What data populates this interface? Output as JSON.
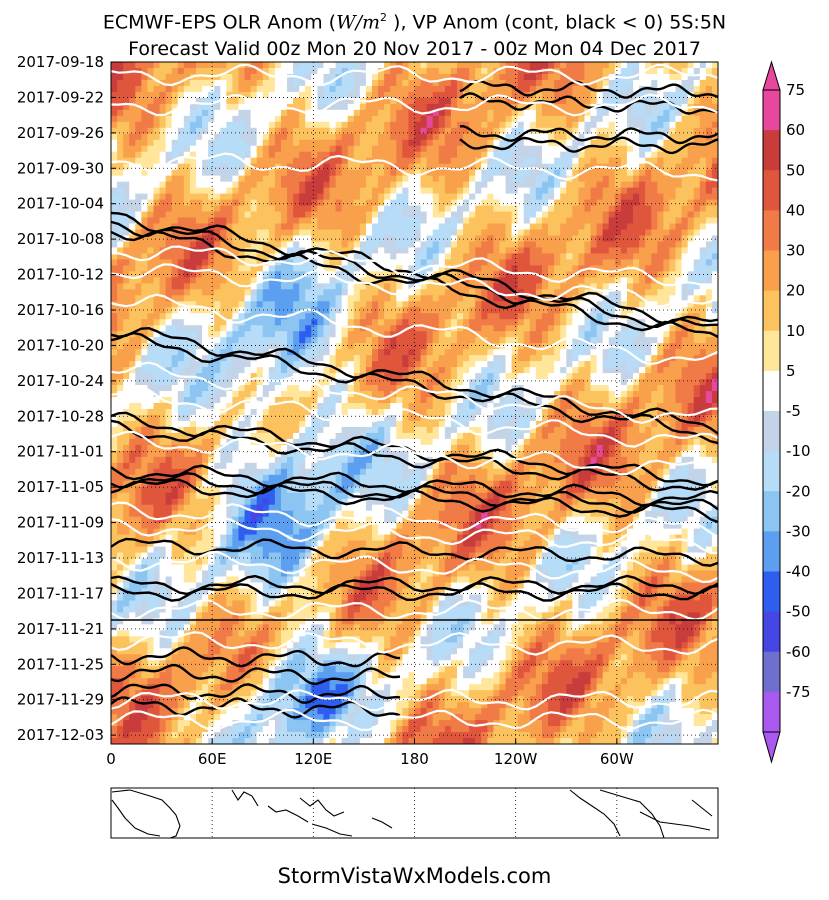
{
  "title_line1": "ECMWF-EPS  OLR Anom (W/m², VP Anom (cont, black < 0) 5S:5N",
  "title_line1_a": "ECMWF-EPS  OLR Anom (",
  "title_line1_b": "W/m",
  "title_line1_c": "2",
  "title_line1_d": " ), VP Anom (cont, black < 0) 5S:5N",
  "title_line2": "Forecast Valid 00z Mon 20 Nov 2017 - 00z Mon 04 Dec 2017",
  "footer": "StormVistaWxModels.com",
  "chart_data": {
    "type": "heatmap",
    "title": "ECMWF-EPS  OLR Anom (W/m2 ), VP Anom (cont, black < 0) 5S:5N",
    "subtitle": "Forecast Valid 00z Mon 20 Nov 2017 - 00z Mon 04 Dec 2017",
    "xlabel": "",
    "ylabel": "",
    "x_ticks": [
      "0",
      "60E",
      "120E",
      "180",
      "120W",
      "60W"
    ],
    "x_tick_longitudes": [
      0,
      60,
      120,
      180,
      240,
      300
    ],
    "xlim": [
      0,
      360
    ],
    "y_ticks": [
      "2017-09-18",
      "2017-09-22",
      "2017-09-26",
      "2017-09-30",
      "2017-10-04",
      "2017-10-08",
      "2017-10-12",
      "2017-10-16",
      "2017-10-20",
      "2017-10-24",
      "2017-10-28",
      "2017-11-01",
      "2017-11-05",
      "2017-11-09",
      "2017-11-13",
      "2017-11-17",
      "2017-11-21",
      "2017-11-25",
      "2017-11-29",
      "2017-12-03"
    ],
    "ylim": [
      "2017-09-18",
      "2017-12-04"
    ],
    "y_inverted": true,
    "forecast_start": "2017-11-20",
    "colorbar": {
      "labels": [
        "75",
        "60",
        "50",
        "40",
        "30",
        "20",
        "10",
        "5",
        "-5",
        "-10",
        "-20",
        "-30",
        "-40",
        "-50",
        "-60",
        "-75"
      ],
      "levels": [
        75,
        60,
        50,
        40,
        30,
        20,
        10,
        5,
        -5,
        -10,
        -20,
        -30,
        -40,
        -50,
        -60,
        -75
      ],
      "colors": [
        "#e8479e",
        "#c83c3c",
        "#e0563c",
        "#f07b46",
        "#f9a04c",
        "#fcc25e",
        "#ffe69a",
        "#ffffff",
        "#c4d4e8",
        "#b6dcf8",
        "#8cc4f2",
        "#5c9ef0",
        "#2e5ef0",
        "#4646e6",
        "#6f6fd0",
        "#a958f0"
      ],
      "extend": "both"
    },
    "contours": {
      "black": "VP Anom < 0",
      "white": "VP Anom >= 0"
    },
    "grid": true
  }
}
